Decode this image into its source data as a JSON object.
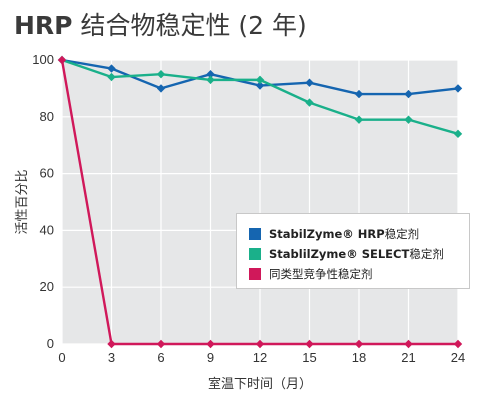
{
  "title": {
    "bold": "HRP",
    "rest": " 结合物稳定性 (2 年)"
  },
  "chart_data": {
    "type": "line",
    "xlabel": "室温下时间（月）",
    "ylabel": "活性百分比",
    "x": [
      0,
      3,
      6,
      9,
      12,
      15,
      18,
      21,
      24
    ],
    "xlim": [
      0,
      24
    ],
    "ylim": [
      0,
      100
    ],
    "xticks": [
      "0",
      "3",
      "6",
      "9",
      "12",
      "15",
      "18",
      "21",
      "24"
    ],
    "yticks": [
      "0",
      "20",
      "40",
      "60",
      "80",
      "100"
    ],
    "grid": true,
    "legend_position": "center-right",
    "series": [
      {
        "name": "StabilZyme® HRP 稳定剂",
        "name_bold": "StabilZyme® HRP",
        "name_rest": " 稳定剂",
        "color": "#1565b0",
        "values": [
          100,
          97,
          90,
          95,
          91,
          92,
          88,
          88,
          90
        ]
      },
      {
        "name": "StablilZyme® SELECT 稳定剂",
        "name_bold": "StablilZyme® SELECT",
        "name_rest": " 稳定剂",
        "color": "#1ab08a",
        "values": [
          100,
          94,
          95,
          93,
          93,
          85,
          79,
          79,
          74
        ]
      },
      {
        "name": "同类型竞争性稳定剂",
        "name_bold": "",
        "name_rest": "同类型竞争性稳定剂",
        "color": "#d0185a",
        "values": [
          100,
          0,
          0,
          0,
          0,
          0,
          0,
          0,
          0
        ]
      }
    ]
  }
}
